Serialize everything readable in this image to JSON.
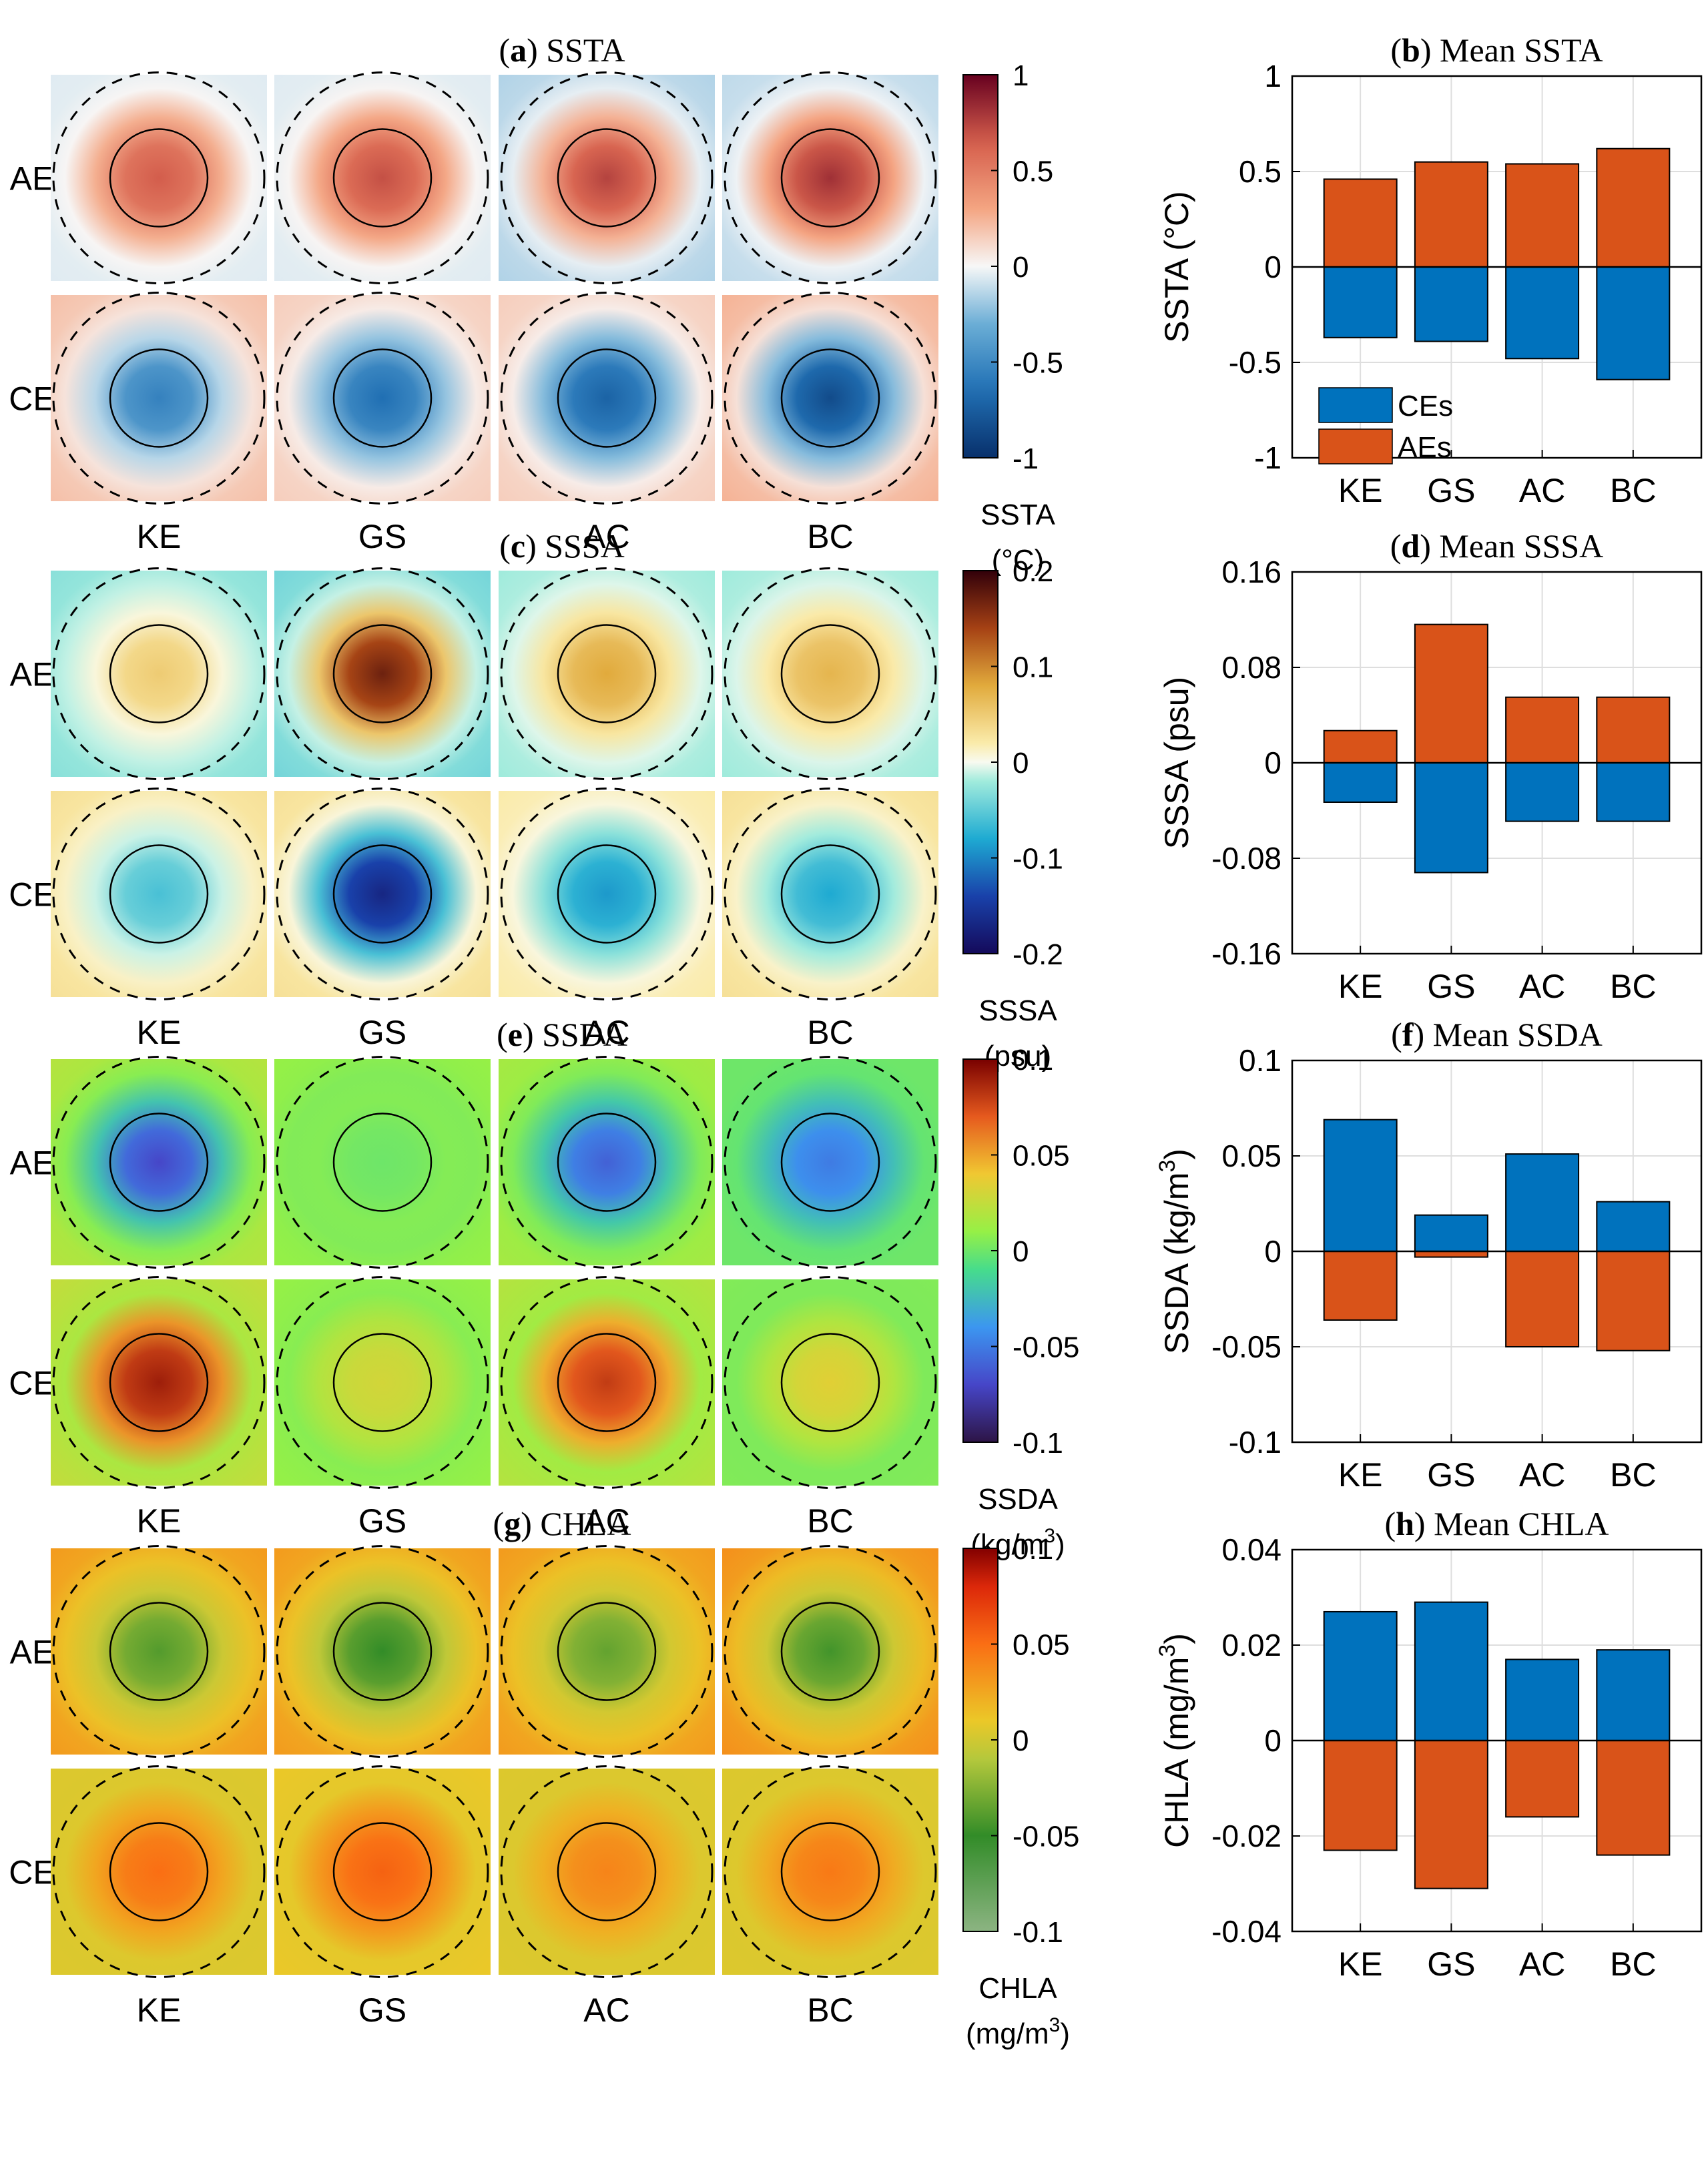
{
  "figure": {
    "row_labels": [
      "AE",
      "CE"
    ],
    "region_labels": [
      "KE",
      "GS",
      "AC",
      "BC"
    ]
  },
  "colors": {
    "CEs": "#0072BD",
    "AEs": "#D95319"
  },
  "chart_data": [
    {
      "id": "a",
      "type": "heatmap",
      "title_letter": "a",
      "title_text": "SSTA",
      "colormap": "diverging-red-blue",
      "clim": [
        -1,
        1
      ],
      "colorbar_ticks": [
        "1",
        "0.5",
        "0",
        "-0.5",
        "-1"
      ],
      "colorbar_label": [
        "SSTA",
        "(°C)"
      ],
      "rows": [
        "AE",
        "CE"
      ],
      "columns": [
        "KE",
        "GS",
        "AC",
        "BC"
      ],
      "center_values": {
        "AE": [
          0.65,
          0.7,
          0.75,
          0.82
        ],
        "CE": [
          -0.55,
          -0.65,
          -0.72,
          -0.85
        ]
      },
      "edge_values": {
        "AE": [
          -0.05,
          -0.05,
          -0.15,
          -0.12
        ],
        "CE": [
          0.2,
          0.15,
          0.15,
          0.25
        ]
      }
    },
    {
      "id": "b",
      "type": "bar",
      "title_letter": "b",
      "title_text": "Mean SSTA",
      "categories": [
        "KE",
        "GS",
        "AC",
        "BC"
      ],
      "series": [
        {
          "name": "CEs",
          "values": [
            -0.37,
            -0.39,
            -0.48,
            -0.59
          ]
        },
        {
          "name": "AEs",
          "values": [
            0.46,
            0.55,
            0.54,
            0.62
          ]
        }
      ],
      "ylabel": "SSTA (°C)",
      "ylim": [
        -1,
        1
      ],
      "yticks": [
        1,
        0.5,
        0,
        -0.5,
        -1
      ],
      "ytick_labels": [
        "1",
        "0.5",
        "0",
        "-0.5",
        "-1"
      ],
      "legend": [
        "CEs",
        "AEs"
      ],
      "legend_position": "bottom-left",
      "grid": true
    },
    {
      "id": "c",
      "type": "heatmap",
      "title_letter": "c",
      "title_text": "SSSA",
      "colormap": "brown-teal",
      "clim": [
        -0.2,
        0.2
      ],
      "colorbar_ticks": [
        "0.2",
        "0.1",
        "0",
        "-0.1",
        "-0.2"
      ],
      "colorbar_label": [
        "SSSA",
        "(psu)"
      ],
      "rows": [
        "AE",
        "CE"
      ],
      "columns": [
        "KE",
        "GS",
        "AC",
        "BC"
      ],
      "center_values": {
        "AE": [
          0.05,
          0.17,
          0.08,
          0.07
        ],
        "CE": [
          -0.06,
          -0.17,
          -0.09,
          -0.08
        ]
      },
      "edge_values": {
        "AE": [
          -0.03,
          -0.04,
          -0.02,
          -0.02
        ],
        "CE": [
          0.03,
          0.03,
          0.02,
          0.03
        ]
      }
    },
    {
      "id": "d",
      "type": "bar",
      "title_letter": "d",
      "title_text": "Mean SSSA",
      "categories": [
        "KE",
        "GS",
        "AC",
        "BC"
      ],
      "series": [
        {
          "name": "CEs",
          "values": [
            -0.033,
            -0.092,
            -0.049,
            -0.049
          ]
        },
        {
          "name": "AEs",
          "values": [
            0.027,
            0.116,
            0.055,
            0.055
          ]
        }
      ],
      "ylabel": "SSSA (psu)",
      "ylim": [
        -0.16,
        0.16
      ],
      "yticks": [
        0.16,
        0.08,
        0,
        -0.08,
        -0.16
      ],
      "ytick_labels": [
        "0.16",
        "0.08",
        "0",
        "-0.08",
        "-0.16"
      ],
      "grid": true
    },
    {
      "id": "e",
      "type": "heatmap",
      "title_letter": "e",
      "title_text": "SSDA",
      "colormap": "jet",
      "clim": [
        -0.1,
        0.1
      ],
      "colorbar_ticks": [
        "0.1",
        "0.05",
        "0",
        "-0.05",
        "-0.1"
      ],
      "colorbar_label": [
        "SSDA",
        "(kg/m",
        "3",
        ")"
      ],
      "rows": [
        "AE",
        "CE"
      ],
      "columns": [
        "KE",
        "GS",
        "AC",
        "BC"
      ],
      "center_values": {
        "AE": [
          -0.07,
          0.0,
          -0.06,
          -0.05
        ],
        "CE": [
          0.09,
          0.03,
          0.08,
          0.035
        ]
      },
      "edge_values": {
        "AE": [
          0.02,
          0.01,
          0.015,
          0.0
        ],
        "CE": [
          0.025,
          0.01,
          0.02,
          0.005
        ]
      }
    },
    {
      "id": "f",
      "type": "bar",
      "title_letter": "f",
      "title_text": "Mean SSDA",
      "categories": [
        "KE",
        "GS",
        "AC",
        "BC"
      ],
      "series": [
        {
          "name": "CEs",
          "values": [
            0.069,
            0.019,
            0.051,
            0.026
          ]
        },
        {
          "name": "AEs",
          "values": [
            -0.036,
            -0.003,
            -0.05,
            -0.052
          ]
        }
      ],
      "ylabel": "SSDA (kg/m",
      "ylabel_sup": "3",
      "ylabel_end": ")",
      "ylim": [
        -0.1,
        0.1
      ],
      "yticks": [
        0.1,
        0.05,
        0,
        -0.05,
        -0.1
      ],
      "ytick_labels": [
        "0.1",
        "0.05",
        "0",
        "-0.05",
        "-0.1"
      ],
      "grid": true
    },
    {
      "id": "g",
      "type": "heatmap",
      "title_letter": "g",
      "title_text": "CHLA",
      "colormap": "green-orange",
      "clim": [
        -0.1,
        0.1
      ],
      "colorbar_ticks": [
        "0.1",
        "0.05",
        "0",
        "-0.05",
        "-0.1"
      ],
      "colorbar_label": [
        "CHLA",
        "(mg/m",
        "3",
        ")"
      ],
      "rows": [
        "AE",
        "CE"
      ],
      "columns": [
        "KE",
        "GS",
        "AC",
        "BC"
      ],
      "center_values": {
        "AE": [
          -0.04,
          -0.05,
          -0.035,
          -0.045
        ],
        "CE": [
          0.05,
          0.055,
          0.04,
          0.045
        ]
      },
      "edge_values": {
        "AE": [
          0.03,
          0.03,
          0.03,
          0.035
        ],
        "CE": [
          0.005,
          0.01,
          0.005,
          0.005
        ]
      }
    },
    {
      "id": "h",
      "type": "bar",
      "title_letter": "h",
      "title_text": "Mean CHLA",
      "categories": [
        "KE",
        "GS",
        "AC",
        "BC"
      ],
      "series": [
        {
          "name": "CEs",
          "values": [
            0.027,
            0.029,
            0.017,
            0.019
          ]
        },
        {
          "name": "AEs",
          "values": [
            -0.023,
            -0.031,
            -0.016,
            -0.024
          ]
        }
      ],
      "ylabel": "CHLA (mg/m",
      "ylabel_sup": "3",
      "ylabel_end": ")",
      "ylim": [
        -0.04,
        0.04
      ],
      "yticks": [
        0.04,
        0.02,
        0,
        -0.02,
        -0.04
      ],
      "ytick_labels": [
        "0.04",
        "0.02",
        "0",
        "-0.02",
        "-0.04"
      ],
      "grid": true
    }
  ]
}
